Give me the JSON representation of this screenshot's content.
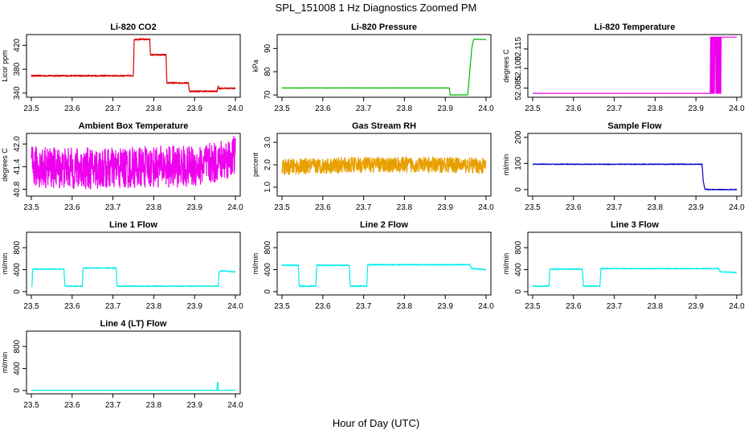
{
  "figure": {
    "title": "SPL_151008  1 Hz Diagnostics Zoomed PM",
    "xlabel": "Hour of Day (UTC)"
  },
  "chart_data": [
    {
      "type": "line",
      "title": "Li-820 CO2",
      "ylabel": "Licor ppm",
      "color": "#dd0000",
      "xlim": [
        23.5,
        24.0
      ],
      "ylim": [
        333,
        438
      ],
      "xticks": [
        "23.5",
        "23.6",
        "23.7",
        "23.8",
        "23.9",
        "24.0"
      ],
      "yticks": [
        340,
        380,
        420
      ],
      "noise": 1.2,
      "series": [
        {
          "x": [
            23.5,
            23.75,
            23.752,
            23.79,
            23.792,
            23.83,
            23.832,
            23.885,
            23.887,
            23.955,
            23.958,
            23.96,
            23.962,
            24.0
          ],
          "y": [
            369,
            369,
            430,
            430,
            404,
            404,
            357,
            357,
            343,
            343,
            352,
            347,
            348,
            348
          ]
        }
      ]
    },
    {
      "type": "line",
      "title": "Li-820 Pressure",
      "ylabel": "kPa",
      "color": "#00bb00",
      "xlim": [
        23.5,
        24.0
      ],
      "ylim": [
        69,
        96
      ],
      "xticks": [
        "23.5",
        "23.6",
        "23.7",
        "23.8",
        "23.9",
        "24.0"
      ],
      "yticks": [
        70,
        80,
        90
      ],
      "noise": 0.08,
      "series": [
        {
          "x": [
            23.5,
            23.91,
            23.912,
            23.955,
            23.958,
            23.962,
            23.965,
            23.968,
            23.97,
            24.0
          ],
          "y": [
            73,
            73,
            70,
            70,
            76,
            84,
            90,
            93,
            94,
            93.8
          ]
        }
      ]
    },
    {
      "type": "line",
      "title": "Li-820 Temperature",
      "ylabel": "degrees C",
      "color": "#ee00ee",
      "xlim": [
        23.5,
        24.0
      ],
      "ylim": [
        52.078,
        52.126
      ],
      "xticks": [
        "23.5",
        "23.6",
        "23.7",
        "23.8",
        "23.9",
        "24.0"
      ],
      "yticks": [
        "52.085",
        "52.100",
        "52.115"
      ],
      "noise": 0,
      "series": [
        {
          "x": [
            23.5,
            23.935,
            23.936,
            23.937,
            23.938,
            23.939,
            23.94,
            23.941,
            23.942,
            23.943,
            23.944,
            23.945,
            23.946,
            23.947,
            23.948,
            23.949,
            23.95,
            23.951,
            23.952,
            23.953,
            23.954,
            23.955,
            23.956,
            23.957,
            23.958,
            23.959,
            23.96,
            23.961,
            23.962,
            24.0
          ],
          "y": [
            52.081,
            52.081,
            52.124,
            52.081,
            52.124,
            52.081,
            52.124,
            52.081,
            52.124,
            52.081,
            52.124,
            52.081,
            52.124,
            52.124,
            52.124,
            52.081,
            52.124,
            52.081,
            52.124,
            52.081,
            52.124,
            52.081,
            52.124,
            52.081,
            52.124,
            52.081,
            52.124,
            52.081,
            52.124,
            52.124
          ]
        }
      ]
    },
    {
      "type": "line",
      "title": "Ambient Box Temperature",
      "ylabel": "degrees C",
      "color": "#ee00ee",
      "xlim": [
        23.5,
        24.0
      ],
      "ylim": [
        40.62,
        42.28
      ],
      "xticks": [
        "23.5",
        "23.6",
        "23.7",
        "23.8",
        "23.9",
        "24.0"
      ],
      "yticks": [
        "40.8",
        "41.4",
        "42.0"
      ],
      "noise": 0.55,
      "series": [
        {
          "x": [
            23.5,
            23.6,
            23.7,
            23.8,
            23.9,
            23.95,
            24.0
          ],
          "y": [
            41.4,
            41.35,
            41.35,
            41.4,
            41.4,
            41.5,
            41.7
          ]
        }
      ]
    },
    {
      "type": "line",
      "title": "Gas Stream RH",
      "ylabel": "percent",
      "color": "#e8a000",
      "xlim": [
        23.5,
        24.0
      ],
      "ylim": [
        0.6,
        3.4
      ],
      "xticks": [
        "23.5",
        "23.6",
        "23.7",
        "23.8",
        "23.9",
        "24.0"
      ],
      "yticks": [
        "1.0",
        "2.0",
        "3.0"
      ],
      "noise": 0.35,
      "series": [
        {
          "x": [
            23.5,
            23.6,
            23.7,
            23.8,
            23.9,
            24.0
          ],
          "y": [
            1.9,
            1.95,
            2.0,
            2.0,
            2.0,
            1.95
          ]
        }
      ]
    },
    {
      "type": "line",
      "title": "Sample Flow",
      "ylabel": "ml/min",
      "color": "#0000cc",
      "xlim": [
        23.5,
        24.0
      ],
      "ylim": [
        -25,
        215
      ],
      "xticks": [
        "23.5",
        "23.6",
        "23.7",
        "23.8",
        "23.9",
        "24.0"
      ],
      "yticks": [
        0,
        100,
        200
      ],
      "noise": 1.5,
      "series": [
        {
          "x": [
            23.5,
            23.915,
            23.918,
            23.922,
            23.93,
            24.0
          ],
          "y": [
            97,
            97,
            30,
            2,
            0,
            0
          ]
        }
      ]
    },
    {
      "type": "line",
      "title": "Line 1 Flow",
      "ylabel": "ml/min",
      "color": "#00eeee",
      "xlim": [
        23.5,
        24.0
      ],
      "ylim": [
        -60,
        1080
      ],
      "xticks": [
        "23.5",
        "23.6",
        "23.7",
        "23.8",
        "23.9",
        "24.0"
      ],
      "yticks": [
        0,
        400,
        800
      ],
      "noise": 8,
      "series": [
        {
          "x": [
            23.5,
            23.502,
            23.503,
            23.58,
            23.582,
            23.625,
            23.627,
            23.708,
            23.71,
            23.958,
            23.96,
            23.965,
            24.0
          ],
          "y": [
            100,
            100,
            410,
            410,
            100,
            100,
            430,
            430,
            100,
            100,
            350,
            380,
            360
          ]
        }
      ]
    },
    {
      "type": "line",
      "title": "Line 2 Flow",
      "ylabel": "ml/min",
      "color": "#00eeee",
      "xlim": [
        23.5,
        24.0
      ],
      "ylim": [
        -60,
        1080
      ],
      "xticks": [
        "23.5",
        "23.6",
        "23.7",
        "23.8",
        "23.9",
        "24.0"
      ],
      "yticks": [
        0,
        400,
        800
      ],
      "noise": 10,
      "series": [
        {
          "x": [
            23.5,
            23.54,
            23.542,
            23.583,
            23.585,
            23.665,
            23.667,
            23.708,
            23.71,
            23.96,
            23.965,
            24.0
          ],
          "y": [
            480,
            480,
            100,
            100,
            480,
            480,
            100,
            100,
            490,
            490,
            420,
            400
          ]
        }
      ]
    },
    {
      "type": "line",
      "title": "Line 3 Flow",
      "ylabel": "ml/min",
      "color": "#00eeee",
      "xlim": [
        23.5,
        24.0
      ],
      "ylim": [
        -60,
        1080
      ],
      "xticks": [
        "23.5",
        "23.6",
        "23.7",
        "23.8",
        "23.9",
        "24.0"
      ],
      "yticks": [
        0,
        400,
        800
      ],
      "noise": 8,
      "series": [
        {
          "x": [
            23.5,
            23.502,
            23.504,
            23.54,
            23.542,
            23.622,
            23.624,
            23.665,
            23.667,
            23.955,
            23.96,
            24.0
          ],
          "y": [
            100,
            100,
            100,
            100,
            410,
            410,
            100,
            100,
            420,
            420,
            360,
            350
          ]
        }
      ]
    },
    {
      "type": "line",
      "title": "Line 4 (LT) Flow",
      "ylabel": "ml/min",
      "color": "#00eeee",
      "xlim": [
        23.5,
        24.0
      ],
      "ylim": [
        -60,
        1080
      ],
      "xticks": [
        "23.5",
        "23.6",
        "23.7",
        "23.8",
        "23.9",
        "24.0"
      ],
      "yticks": [
        0,
        400,
        800
      ],
      "noise": 0,
      "series": [
        {
          "x": [
            23.5,
            23.955,
            23.956,
            23.957,
            23.958,
            24.0
          ],
          "y": [
            5,
            5,
            150,
            150,
            5,
            5
          ]
        }
      ]
    }
  ]
}
